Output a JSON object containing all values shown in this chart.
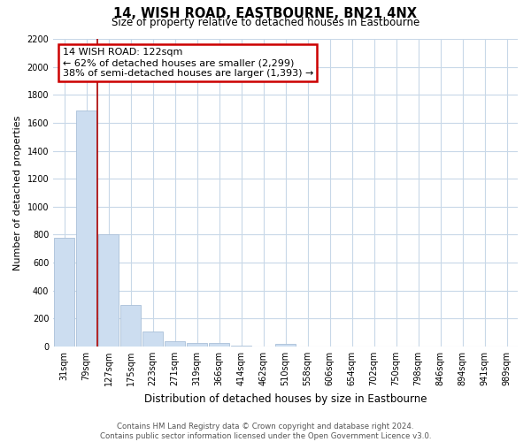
{
  "title": "14, WISH ROAD, EASTBOURNE, BN21 4NX",
  "subtitle": "Size of property relative to detached houses in Eastbourne",
  "xlabel": "Distribution of detached houses by size in Eastbourne",
  "ylabel": "Number of detached properties",
  "bin_labels": [
    "31sqm",
    "79sqm",
    "127sqm",
    "175sqm",
    "223sqm",
    "271sqm",
    "319sqm",
    "366sqm",
    "414sqm",
    "462sqm",
    "510sqm",
    "558sqm",
    "606sqm",
    "654sqm",
    "702sqm",
    "750sqm",
    "798sqm",
    "846sqm",
    "894sqm",
    "941sqm",
    "989sqm"
  ],
  "bar_values": [
    780,
    1690,
    800,
    295,
    110,
    35,
    25,
    22,
    5,
    0,
    20,
    0,
    0,
    0,
    0,
    0,
    0,
    0,
    0,
    0,
    0
  ],
  "bar_color": "#ccddf0",
  "bar_edge_color": "#aac0d8",
  "vline_color": "#aa0000",
  "ylim": [
    0,
    2200
  ],
  "yticks": [
    0,
    200,
    400,
    600,
    800,
    1000,
    1200,
    1400,
    1600,
    1800,
    2000,
    2200
  ],
  "annotation_title": "14 WISH ROAD: 122sqm",
  "annotation_line1": "← 62% of detached houses are smaller (2,299)",
  "annotation_line2": "38% of semi-detached houses are larger (1,393) →",
  "annotation_box_color": "#ffffff",
  "annotation_box_edge": "#cc0000",
  "footer_line1": "Contains HM Land Registry data © Crown copyright and database right 2024.",
  "footer_line2": "Contains public sector information licensed under the Open Government Licence v3.0.",
  "background_color": "#ffffff",
  "grid_color": "#c8d8e8"
}
